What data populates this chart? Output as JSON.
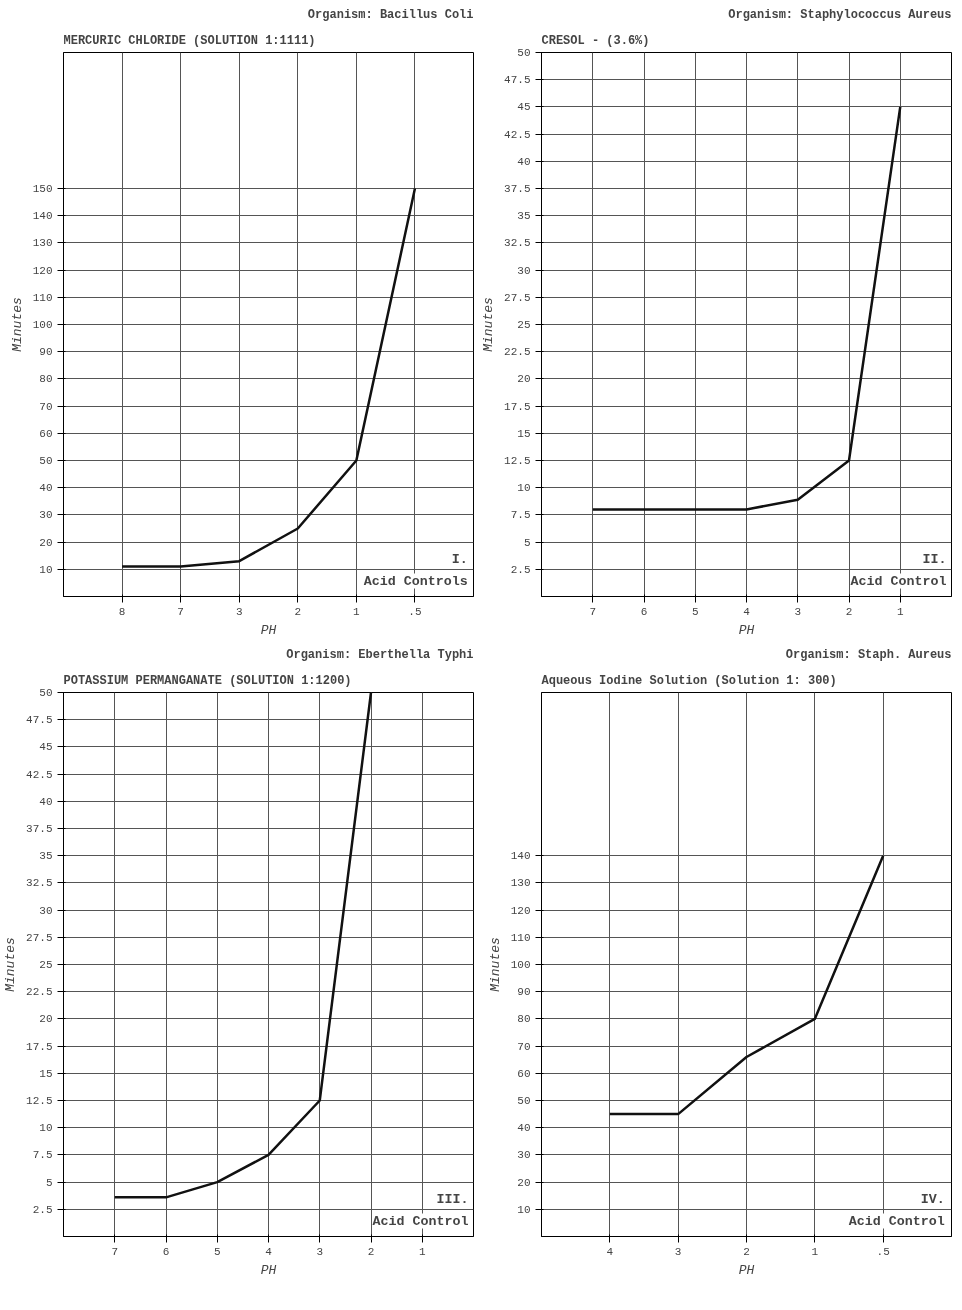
{
  "chart_data": [
    {
      "type": "line",
      "title": "MERCURIC CHLORIDE (SOLUTION 1:1111)",
      "subtitle": "Organism: Bacillus Coli",
      "xlabel": "PH",
      "ylabel": "Minutes",
      "categories": [
        "8",
        "7",
        "3",
        "2",
        "1",
        ".5"
      ],
      "series": [
        {
          "color": "#111111",
          "values": [
            11,
            11,
            13,
            25,
            50,
            150
          ]
        }
      ],
      "ylim": [
        0,
        200
      ],
      "yticks": [
        10,
        20,
        30,
        40,
        50,
        60,
        70,
        80,
        90,
        100,
        110,
        120,
        130,
        140,
        150
      ],
      "grid": true,
      "annotations": [
        "Acid Controls",
        "I."
      ]
    },
    {
      "type": "line",
      "title": "CRESOL - (3.6%)",
      "subtitle": "Organism: Staphylococcus Aureus",
      "xlabel": "PH",
      "ylabel": "Minutes",
      "categories": [
        "7",
        "6",
        "5",
        "4",
        "3",
        "2",
        "1"
      ],
      "series": [
        {
          "color": "#111111",
          "values": [
            8,
            8,
            8,
            8,
            8.9,
            12.5,
            45
          ]
        }
      ],
      "ylim": [
        0,
        50
      ],
      "yticks": [
        2.5,
        5,
        7.5,
        10,
        12.5,
        15,
        17.5,
        20,
        22.5,
        25,
        27.5,
        30,
        32.5,
        35,
        37.5,
        40,
        42.5,
        45,
        47.5,
        50
      ],
      "grid": true,
      "annotations": [
        "Acid Control",
        "II."
      ]
    },
    {
      "type": "line",
      "title": "POTASSIUM PERMANGANATE (SOLUTION 1:1200)",
      "subtitle": "Organism: Eberthella Typhi",
      "xlabel": "PH",
      "ylabel": "Minutes",
      "categories": [
        "7",
        "6",
        "5",
        "4",
        "3",
        "2",
        "1"
      ],
      "series": [
        {
          "color": "#111111",
          "values": [
            3.6,
            3.6,
            5,
            7.5,
            12.5,
            50,
            null
          ]
        }
      ],
      "ylim": [
        0,
        50
      ],
      "yticks": [
        2.5,
        5,
        7.5,
        10,
        12.5,
        15,
        17.5,
        20,
        22.5,
        25,
        27.5,
        30,
        32.5,
        35,
        37.5,
        40,
        42.5,
        45,
        47.5,
        50
      ],
      "grid": true,
      "annotations": [
        "Acid Control",
        "III."
      ]
    },
    {
      "type": "line",
      "title": "Aqueous Iodine Solution (Solution 1: 300)",
      "subtitle": "Organism: Staph. Aureus",
      "xlabel": "PH",
      "ylabel": "Minutes",
      "categories": [
        "4",
        "3",
        "2",
        "1",
        ".5"
      ],
      "series": [
        {
          "color": "#111111",
          "values": [
            45,
            45,
            66,
            80,
            140
          ]
        }
      ],
      "ylim": [
        0,
        200
      ],
      "yticks": [
        10,
        20,
        30,
        40,
        50,
        60,
        70,
        80,
        90,
        100,
        110,
        120,
        130,
        140
      ],
      "grid": true,
      "annotations": [
        "Acid Control",
        "IV."
      ]
    }
  ]
}
